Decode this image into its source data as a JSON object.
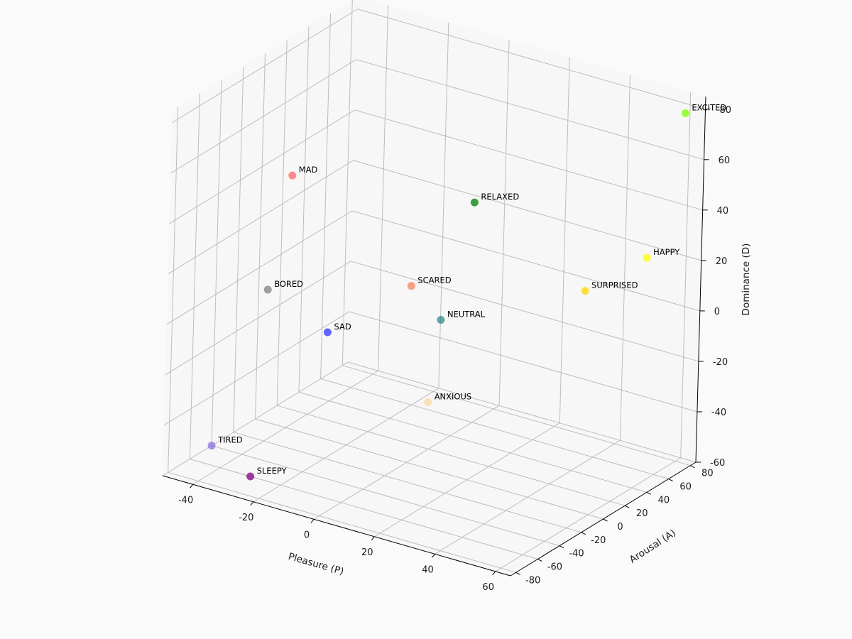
{
  "chart_data": {
    "type": "scatter",
    "projection": "3d",
    "title": "",
    "xlabel": "Pleasure (P)",
    "ylabel": "Arousal (A)",
    "zlabel": "Dominance (D)",
    "xlim": [
      -50,
      65
    ],
    "ylim": [
      -85,
      85
    ],
    "zlim": [
      -60,
      85
    ],
    "xticks": [
      -40,
      -20,
      0,
      20,
      40,
      60
    ],
    "yticks": [
      -80,
      -60,
      -40,
      -20,
      0,
      20,
      40,
      60,
      80
    ],
    "zticks": [
      -60,
      -40,
      -20,
      0,
      20,
      40,
      60,
      80
    ],
    "grid": true,
    "points": [
      {
        "label": "EXCITED",
        "x": 62,
        "y": 75,
        "z": 80,
        "color": "#7fff00"
      },
      {
        "label": "HAPPY",
        "x": 70,
        "y": 20,
        "z": 40,
        "color": "#ffff00"
      },
      {
        "label": "SURPRISED",
        "x": 50,
        "y": 20,
        "z": 20,
        "color": "#ffd700"
      },
      {
        "label": "RELAXED",
        "x": 20,
        "y": 0,
        "z": 50,
        "color": "#008000"
      },
      {
        "label": "MAD",
        "x": -40,
        "y": 0,
        "z": 40,
        "color": "#ff6666"
      },
      {
        "label": "BORED",
        "x": -40,
        "y": -20,
        "z": 0,
        "color": "#808080"
      },
      {
        "label": "SCARED",
        "x": 0,
        "y": 0,
        "z": 10,
        "color": "#fa8060"
      },
      {
        "label": "NEUTRAL",
        "x": 10,
        "y": 0,
        "z": 0,
        "color": "#2e8b8b"
      },
      {
        "label": "SAD",
        "x": -20,
        "y": -20,
        "z": -10,
        "color": "#3333ff"
      },
      {
        "label": "ANXIOUS",
        "x": 10,
        "y": -10,
        "z": -30,
        "color": "#fad7a0"
      },
      {
        "label": "TIRED",
        "x": -50,
        "y": -40,
        "z": -60,
        "color": "#8a70e0"
      },
      {
        "label": "SLEEPY",
        "x": -30,
        "y": -60,
        "z": -60,
        "color": "#800080"
      }
    ]
  }
}
